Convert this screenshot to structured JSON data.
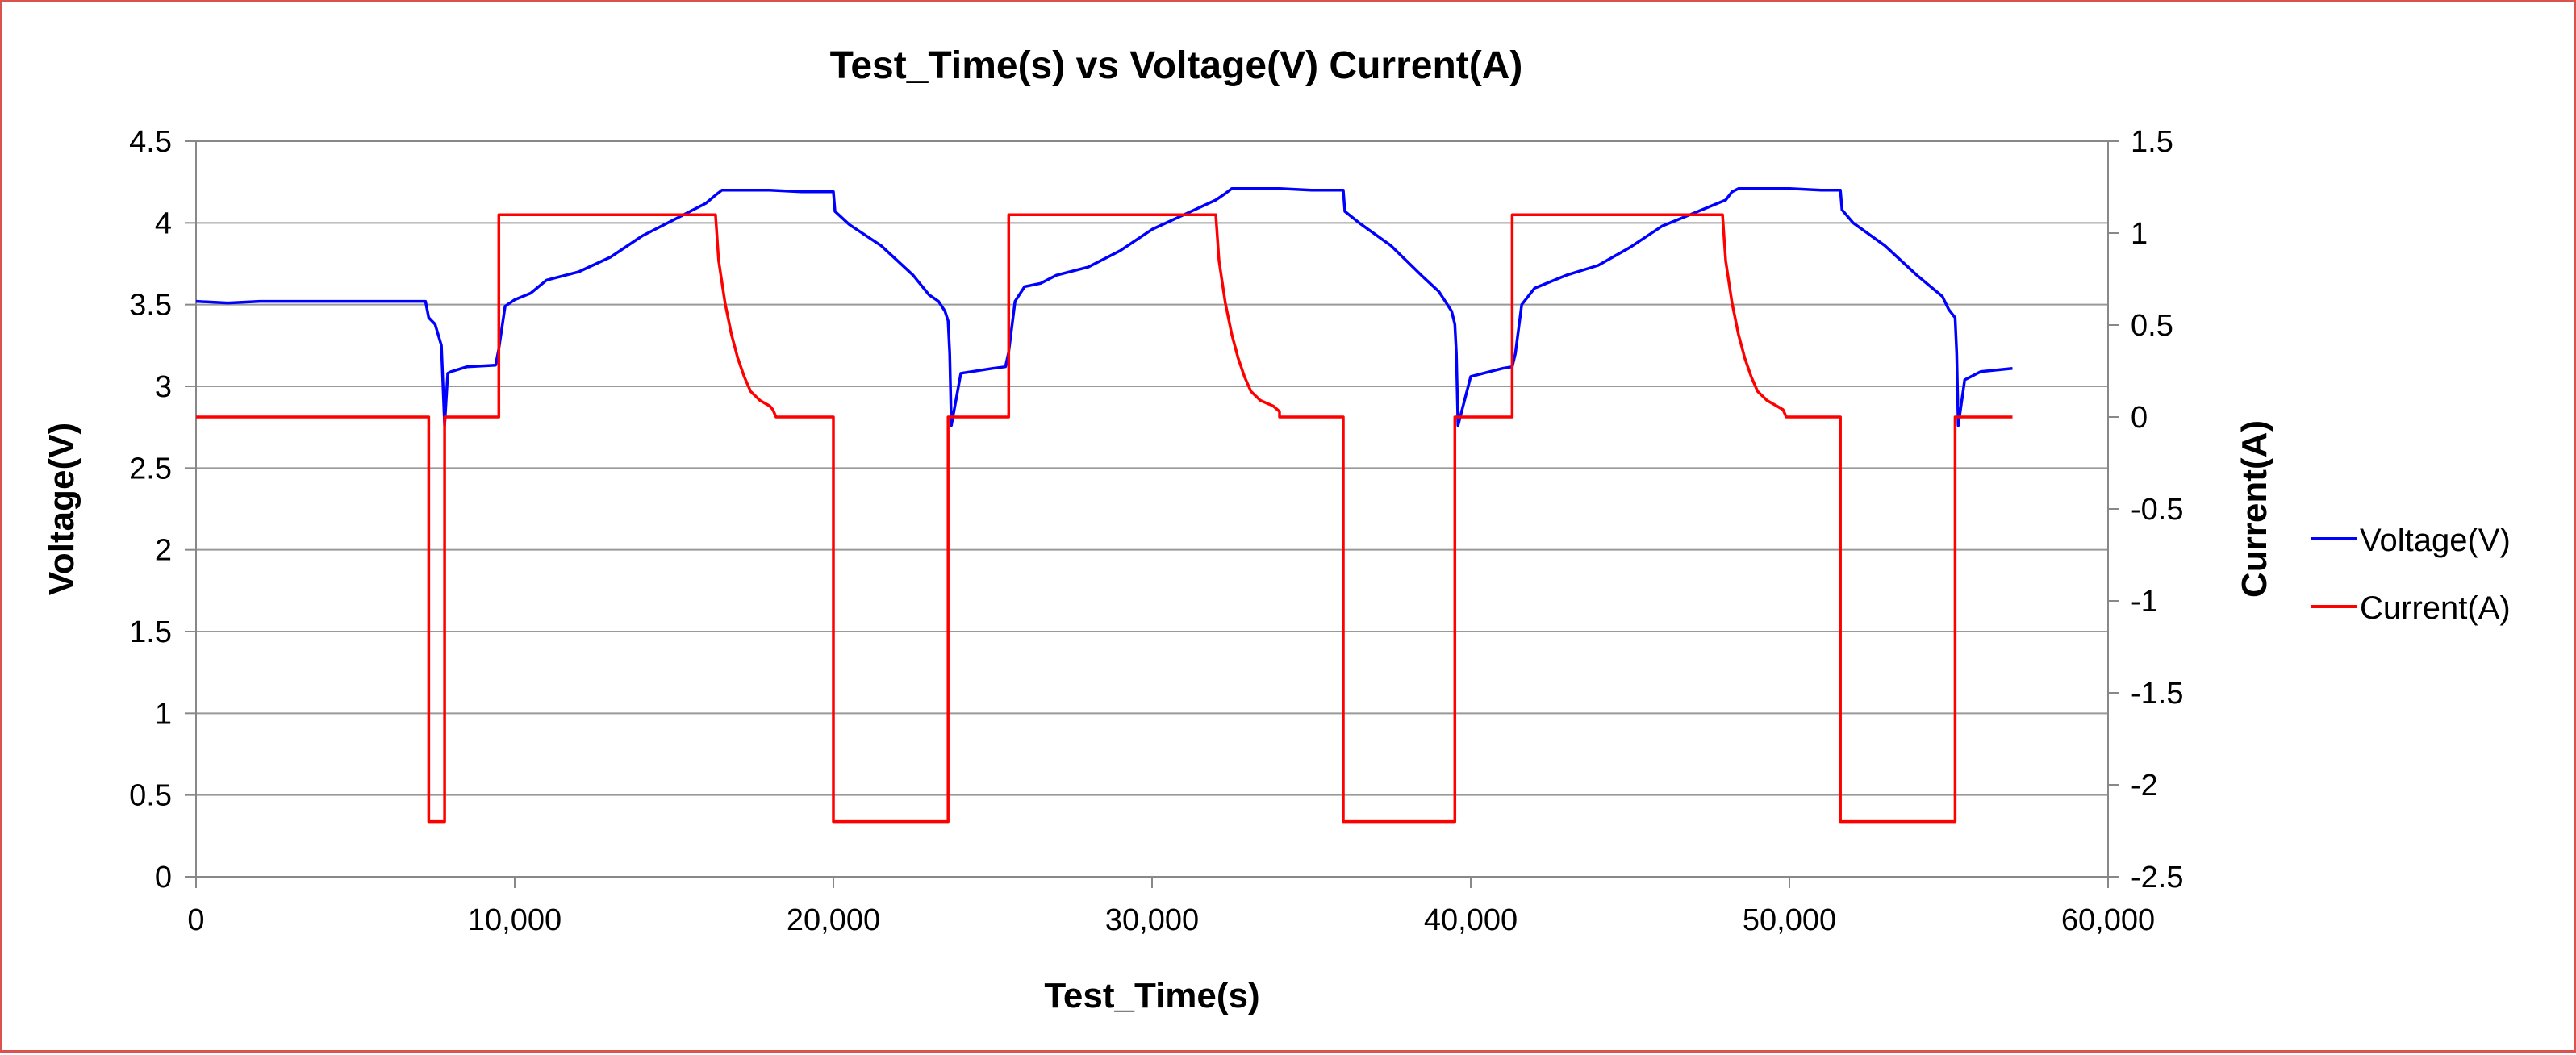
{
  "chart_data": {
    "type": "line",
    "title": "Test_Time(s)  vs Voltage(V) Current(A)",
    "xlabel": "Test_Time(s)",
    "ylabel": "Voltage(V)",
    "y2label": "Current(A)",
    "xlim": [
      0,
      60000
    ],
    "ylim": [
      0,
      4.5
    ],
    "y2lim": [
      -2.5,
      1.5
    ],
    "grid": "horizontal",
    "legend_position": "right",
    "x_ticks": [
      "0",
      "10,000",
      "20,000",
      "30,000",
      "40,000",
      "50,000",
      "60,000"
    ],
    "y_ticks": [
      "0",
      "0.5",
      "1",
      "1.5",
      "2",
      "2.5",
      "3",
      "3.5",
      "4",
      "4.5"
    ],
    "y2_ticks": [
      "-2.5",
      "-2",
      "-1.5",
      "-1",
      "-0.5",
      "0",
      "0.5",
      "1",
      "1.5"
    ],
    "series": [
      {
        "name": "Voltage(V)",
        "axis": "left",
        "color": "#0000ff",
        "x": [
          0,
          1000,
          2000,
          7200,
          7300,
          7500,
          7700,
          7800,
          7900,
          8000,
          8500,
          9400,
          9500,
          9700,
          10000,
          10500,
          11000,
          12000,
          13000,
          14000,
          15000,
          16000,
          16300,
          16500,
          18000,
          19000,
          20000,
          20050,
          20500,
          21500,
          22500,
          23000,
          23300,
          23500,
          23600,
          23650,
          23700,
          24000,
          25000,
          25400,
          25500,
          25700,
          26000,
          26500,
          27000,
          28000,
          29000,
          30000,
          31000,
          32000,
          32300,
          32500,
          34000,
          35000,
          36000,
          36050,
          36500,
          37500,
          38500,
          39000,
          39200,
          39400,
          39500,
          39550,
          39600,
          40000,
          41000,
          41300,
          41400,
          41600,
          42000,
          42500,
          43000,
          44000,
          45000,
          46000,
          47000,
          48000,
          48200,
          48400,
          50000,
          51000,
          51600,
          51650,
          52000,
          53000,
          54000,
          54800,
          55000,
          55200,
          55250,
          55300,
          55500,
          56000,
          57000
        ],
        "values": [
          3.52,
          3.51,
          3.52,
          3.52,
          3.42,
          3.38,
          3.25,
          2.76,
          3.08,
          3.09,
          3.12,
          3.13,
          3.23,
          3.49,
          3.53,
          3.57,
          3.65,
          3.7,
          3.79,
          3.92,
          4.02,
          4.12,
          4.17,
          4.2,
          4.2,
          4.19,
          4.19,
          4.07,
          3.99,
          3.86,
          3.68,
          3.56,
          3.52,
          3.46,
          3.4,
          3.2,
          2.76,
          3.08,
          3.11,
          3.12,
          3.21,
          3.52,
          3.61,
          3.63,
          3.68,
          3.73,
          3.83,
          3.96,
          4.05,
          4.14,
          4.18,
          4.21,
          4.21,
          4.2,
          4.2,
          4.07,
          4.0,
          3.86,
          3.67,
          3.58,
          3.52,
          3.46,
          3.38,
          3.2,
          2.76,
          3.06,
          3.11,
          3.12,
          3.2,
          3.5,
          3.6,
          3.64,
          3.68,
          3.74,
          3.85,
          3.98,
          4.06,
          4.14,
          4.19,
          4.21,
          4.21,
          4.2,
          4.2,
          4.08,
          4.0,
          3.86,
          3.68,
          3.55,
          3.47,
          3.42,
          3.2,
          2.76,
          3.04,
          3.09,
          3.11
        ]
      },
      {
        "name": "Current(A)",
        "axis": "right",
        "color": "#ff0000",
        "x": [
          0,
          7300,
          7300,
          7800,
          7800,
          9500,
          9500,
          16300,
          16400,
          16600,
          16800,
          17000,
          17200,
          17400,
          17700,
          18000,
          18100,
          18200,
          19800,
          20000,
          20000,
          23600,
          23600,
          25500,
          25500,
          32000,
          32100,
          32300,
          32500,
          32700,
          32900,
          33100,
          33400,
          33800,
          34000,
          34000,
          35800,
          36000,
          36000,
          39500,
          39500,
          41300,
          41300,
          47900,
          48000,
          48200,
          48400,
          48600,
          48800,
          49000,
          49300,
          49600,
          49800,
          49900,
          51600,
          51600,
          55200,
          55200,
          57000
        ],
        "values": [
          0,
          0,
          -2.2,
          -2.2,
          0,
          0,
          1.1,
          1.1,
          0.85,
          0.62,
          0.45,
          0.32,
          0.22,
          0.14,
          0.09,
          0.06,
          0.04,
          0,
          0,
          0,
          -2.2,
          -2.2,
          0,
          0,
          1.1,
          1.1,
          0.85,
          0.62,
          0.45,
          0.32,
          0.22,
          0.14,
          0.09,
          0.06,
          0.03,
          0,
          0,
          0,
          -2.2,
          -2.2,
          0,
          0,
          1.1,
          1.1,
          0.85,
          0.62,
          0.45,
          0.32,
          0.22,
          0.14,
          0.09,
          0.06,
          0.04,
          0,
          0,
          -2.2,
          -2.2,
          0,
          0
        ]
      }
    ]
  }
}
